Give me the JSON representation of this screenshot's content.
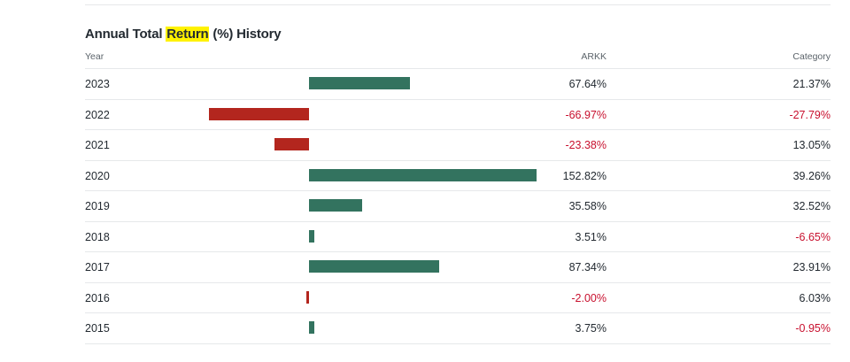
{
  "title_prefix": "Annual Total ",
  "title_highlight": "Return",
  "title_suffix": " (%) History",
  "columns": {
    "year": "Year",
    "fund": "ARKK",
    "category": "Category"
  },
  "colors": {
    "positive_bar": "#33735f",
    "negative_bar": "#b3261e",
    "negative_text": "#c8102e",
    "highlight": "#fff200"
  },
  "chart_data": {
    "type": "bar",
    "title": "Annual Total Return (%) History",
    "categories": [
      "2023",
      "2022",
      "2021",
      "2020",
      "2019",
      "2018",
      "2017",
      "2016",
      "2015"
    ],
    "series": [
      {
        "name": "ARKK",
        "values": [
          67.64,
          -66.97,
          -23.38,
          152.82,
          35.58,
          3.51,
          87.34,
          -2.0,
          3.75
        ]
      }
    ],
    "rows": [
      {
        "year": "2023",
        "fund": "67.64%",
        "category": "21.37%"
      },
      {
        "year": "2022",
        "fund": "-66.97%",
        "category": "-27.79%"
      },
      {
        "year": "2021",
        "fund": "-23.38%",
        "category": "13.05%"
      },
      {
        "year": "2020",
        "fund": "152.82%",
        "category": "39.26%"
      },
      {
        "year": "2019",
        "fund": "35.58%",
        "category": "32.52%"
      },
      {
        "year": "2018",
        "fund": "3.51%",
        "category": "-6.65%"
      },
      {
        "year": "2017",
        "fund": "87.34%",
        "category": "23.91%"
      },
      {
        "year": "2016",
        "fund": "-2.00%",
        "category": "6.03%"
      },
      {
        "year": "2015",
        "fund": "3.75%",
        "category": "-0.95%"
      }
    ]
  }
}
